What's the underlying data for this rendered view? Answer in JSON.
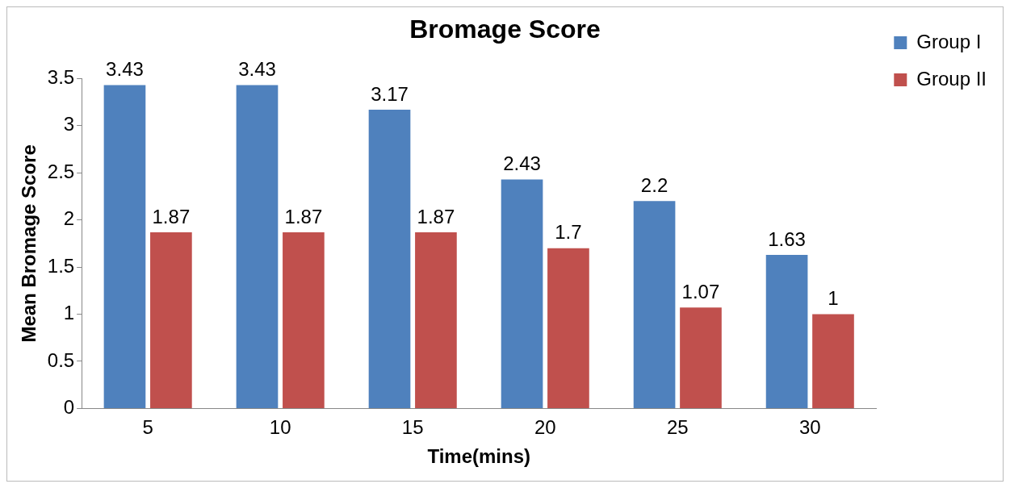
{
  "chart_data": {
    "type": "bar",
    "title": "Bromage Score",
    "xlabel": "Time(mins)",
    "ylabel": "Mean Bromage Score",
    "categories": [
      "5",
      "10",
      "15",
      "20",
      "25",
      "30"
    ],
    "series": [
      {
        "name": "Group I",
        "color": "#4f81bd",
        "values": [
          3.43,
          3.43,
          3.17,
          2.43,
          2.2,
          1.63
        ]
      },
      {
        "name": "Group II",
        "color": "#c0504d",
        "values": [
          1.87,
          1.87,
          1.87,
          1.7,
          1.07,
          1
        ]
      }
    ],
    "ylim": [
      0,
      3.5
    ],
    "yticks": [
      0,
      0.5,
      1,
      1.5,
      2,
      2.5,
      3,
      3.5
    ],
    "grid": false,
    "legend": "top right",
    "data_labels": true
  }
}
